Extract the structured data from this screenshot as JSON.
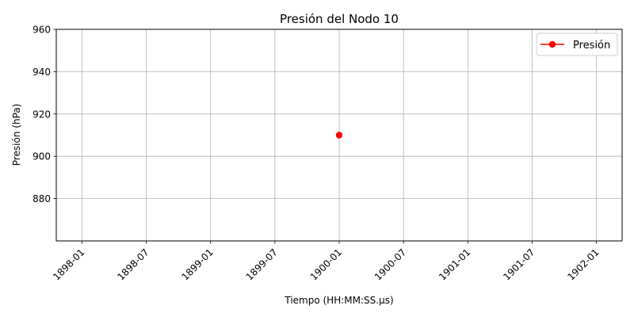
{
  "chart_data": {
    "type": "line",
    "title": "Presión del Nodo 10",
    "xlabel": "Tiempo (HH:MM:SS.µs)",
    "ylabel": "Presión (hPa)",
    "x_ticks": [
      "1898-01",
      "1898-07",
      "1899-01",
      "1899-07",
      "1900-01",
      "1900-07",
      "1901-01",
      "1901-07",
      "1902-01"
    ],
    "x_tick_values": [
      1898.0,
      1898.5,
      1899.0,
      1899.5,
      1900.0,
      1900.5,
      1901.0,
      1901.5,
      1902.0
    ],
    "y_ticks": [
      880,
      900,
      920,
      940,
      960
    ],
    "xlim": [
      1897.8,
      1902.2
    ],
    "ylim": [
      860,
      960
    ],
    "grid": true,
    "legend_position": "upper-right",
    "x_tick_rotation": "45",
    "series": [
      {
        "name": "Presión",
        "color": "#ff0000",
        "marker": "circle",
        "points": [
          {
            "x": 1900.0,
            "y": 910
          }
        ]
      }
    ]
  }
}
